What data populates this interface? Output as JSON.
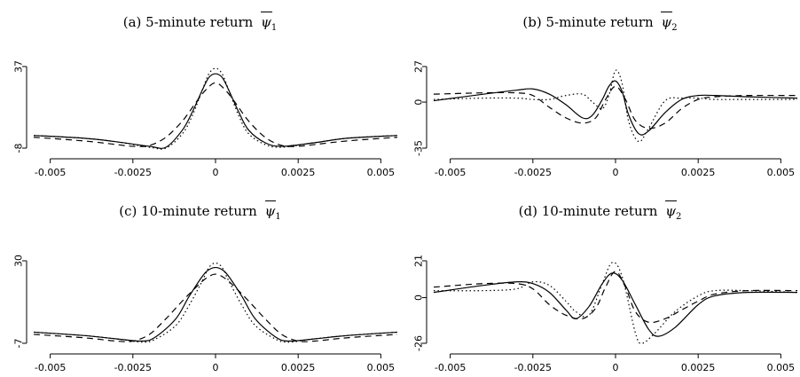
{
  "chart_data": [
    {
      "type": "line",
      "title": "(a) 5-minute return",
      "symbol": "ψ",
      "subscript": "1",
      "xlim": [
        -0.0055,
        0.0055
      ],
      "ylim": [
        -8,
        37
      ],
      "xticks": [
        "-0.005",
        "-0.0025",
        "0",
        "0.0025",
        "0.005"
      ],
      "yticks": [
        "37",
        "-8"
      ],
      "series": [
        {
          "style": "solid",
          "x": [
            -0.0055,
            -0.004,
            -0.003,
            -0.002,
            -0.0015,
            -0.001,
            -0.0007,
            -0.0004,
            -0.0002,
            0,
            0.0002,
            0.0004,
            0.0007,
            0.001,
            0.0015,
            0.002,
            0.003,
            0.004,
            0.0055
          ],
          "y": [
            -1,
            -2.5,
            -4.5,
            -7,
            -7.5,
            2,
            12,
            24,
            31,
            33,
            31,
            24,
            12,
            2,
            -5,
            -7,
            -5,
            -2.5,
            -1
          ]
        },
        {
          "style": "dotted",
          "x": [
            -0.0055,
            -0.004,
            -0.003,
            -0.002,
            -0.0015,
            -0.001,
            -0.0007,
            -0.0004,
            -0.0002,
            0,
            0.0002,
            0.0004,
            0.0007,
            0.001,
            0.0015,
            0.002,
            0.003,
            0.004,
            0.0055
          ],
          "y": [
            -1,
            -2.5,
            -4.5,
            -7.5,
            -8,
            0,
            10,
            24,
            33,
            36,
            33,
            24,
            10,
            0,
            -6,
            -7.5,
            -5,
            -2.5,
            -1
          ]
        },
        {
          "style": "dashed",
          "x": [
            -0.0055,
            -0.004,
            -0.003,
            -0.0025,
            -0.002,
            -0.0015,
            -0.001,
            -0.0006,
            -0.0003,
            0,
            0.0003,
            0.0006,
            0.001,
            0.0015,
            0.002,
            0.0025,
            0.003,
            0.004,
            0.0055
          ],
          "y": [
            -2,
            -4,
            -6,
            -7,
            -6.5,
            -2,
            7,
            17,
            24,
            28,
            24,
            17,
            7,
            -2,
            -6.5,
            -7,
            -6,
            -4,
            -2
          ]
        }
      ]
    },
    {
      "type": "line",
      "title": "(b) 5-minute return",
      "symbol": "ψ",
      "subscript": "2",
      "xlim": [
        -0.0055,
        0.0055
      ],
      "ylim": [
        -35,
        27
      ],
      "xticks": [
        "-0.005",
        "-0.0025",
        "0",
        "0.0025",
        "0.005"
      ],
      "yticks": [
        "27",
        "0",
        "-35"
      ],
      "series": [
        {
          "style": "solid",
          "x": [
            -0.0055,
            -0.004,
            -0.003,
            -0.0025,
            -0.002,
            -0.0015,
            -0.001,
            -0.0007,
            -0.0004,
            -0.0002,
            0,
            0.0002,
            0.0004,
            0.0007,
            0.001,
            0.0015,
            0.002,
            0.0025,
            0.003,
            0.004,
            0.0055
          ],
          "y": [
            1,
            6,
            9,
            10,
            6,
            -2,
            -12,
            -10,
            2,
            12,
            16,
            8,
            -10,
            -24,
            -22,
            -8,
            2,
            5,
            5,
            4,
            3
          ]
        },
        {
          "style": "dotted",
          "x": [
            -0.0055,
            -0.004,
            -0.003,
            -0.0025,
            -0.002,
            -0.0015,
            -0.001,
            -0.0007,
            -0.0004,
            -0.0002,
            0,
            0.0002,
            0.0004,
            0.0007,
            0.001,
            0.0015,
            0.002,
            0.0025,
            0.003,
            0.004,
            0.0055
          ],
          "y": [
            2,
            3,
            3,
            2,
            2,
            5,
            6,
            0,
            -5,
            5,
            24,
            14,
            -15,
            -30,
            -20,
            1,
            3,
            3,
            2,
            2,
            2
          ]
        },
        {
          "style": "dashed",
          "x": [
            -0.0055,
            -0.004,
            -0.003,
            -0.0025,
            -0.002,
            -0.0015,
            -0.001,
            -0.0006,
            -0.0003,
            0,
            0.0003,
            0.0006,
            0.001,
            0.0015,
            0.002,
            0.0025,
            0.003,
            0.004,
            0.0055
          ],
          "y": [
            6,
            7,
            7,
            5,
            -4,
            -12,
            -16,
            -12,
            2,
            12,
            2,
            -14,
            -20,
            -16,
            -5,
            2,
            4,
            5,
            5
          ]
        }
      ]
    },
    {
      "type": "line",
      "title": "(c) 10-minute return",
      "symbol": "ψ",
      "subscript": "1",
      "xlim": [
        -0.0055,
        0.0055
      ],
      "ylim": [
        -7,
        30
      ],
      "xticks": [
        "-0.005",
        "-0.0025",
        "0",
        "0.0025",
        "0.005"
      ],
      "yticks": [
        "30",
        "-7"
      ],
      "series": [
        {
          "style": "solid",
          "x": [
            -0.0055,
            -0.004,
            -0.003,
            -0.0022,
            -0.0018,
            -0.0012,
            -0.0008,
            -0.0004,
            -0.0002,
            0,
            0.0002,
            0.0004,
            0.0008,
            0.0012,
            0.0018,
            0.0022,
            0.003,
            0.004,
            0.0055
          ],
          "y": [
            -2,
            -3.5,
            -5,
            -6,
            -4,
            4,
            14,
            23,
            26,
            27,
            26,
            23,
            14,
            4,
            -4,
            -6,
            -5,
            -3.5,
            -2
          ]
        },
        {
          "style": "dotted",
          "x": [
            -0.0055,
            -0.004,
            -0.003,
            -0.0022,
            -0.0018,
            -0.0012,
            -0.0008,
            -0.0004,
            -0.0002,
            0,
            0.0002,
            0.0004,
            0.0008,
            0.0012,
            0.0018,
            0.0022,
            0.003,
            0.004,
            0.0055
          ],
          "y": [
            -2,
            -3.5,
            -5,
            -6.5,
            -5,
            1,
            10,
            21,
            27,
            29,
            27,
            21,
            10,
            1,
            -5,
            -6.5,
            -5,
            -3.5,
            -2
          ]
        },
        {
          "style": "dashed",
          "x": [
            -0.0055,
            -0.004,
            -0.003,
            -0.0025,
            -0.002,
            -0.0015,
            -0.001,
            -0.0006,
            -0.0003,
            0,
            0.0003,
            0.0006,
            0.001,
            0.0015,
            0.002,
            0.0025,
            0.003,
            0.004,
            0.0055
          ],
          "y": [
            -3,
            -4.5,
            -6,
            -6,
            -3,
            4,
            12,
            18,
            22,
            24,
            22,
            18,
            12,
            4,
            -3,
            -6,
            -6,
            -4.5,
            -3
          ]
        }
      ]
    },
    {
      "type": "line",
      "title": "(d) 10-minute return",
      "symbol": "ψ",
      "subscript": "2",
      "xlim": [
        -0.0055,
        0.0055
      ],
      "ylim": [
        -26,
        21
      ],
      "xticks": [
        "-0.005",
        "-0.0025",
        "0",
        "0.0025",
        "0.005"
      ],
      "yticks": [
        "21",
        "0",
        "-26"
      ],
      "series": [
        {
          "style": "solid",
          "x": [
            -0.0055,
            -0.004,
            -0.003,
            -0.0025,
            -0.002,
            -0.0015,
            -0.0012,
            -0.0008,
            -0.0004,
            -0.0001,
            0.0002,
            0.0006,
            0.001,
            0.0013,
            0.0018,
            0.0025,
            0.003,
            0.004,
            0.0055
          ],
          "y": [
            3,
            7,
            9,
            8,
            3,
            -7,
            -12,
            -5,
            8,
            14,
            10,
            -4,
            -18,
            -22,
            -17,
            -4,
            1,
            3,
            3
          ]
        },
        {
          "style": "dotted",
          "x": [
            -0.0055,
            -0.004,
            -0.003,
            -0.0025,
            -0.002,
            -0.0015,
            -0.0012,
            -0.0008,
            -0.0004,
            -0.0001,
            0.0002,
            0.0006,
            0.0008,
            0.0012,
            0.0018,
            0.0025,
            0.003,
            0.004,
            0.0055
          ],
          "y": [
            4,
            4,
            5,
            9,
            7,
            -2,
            -8,
            -10,
            8,
            20,
            12,
            -20,
            -26,
            -20,
            -8,
            1,
            4,
            4,
            3
          ]
        },
        {
          "style": "dashed",
          "x": [
            -0.0055,
            -0.004,
            -0.003,
            -0.0025,
            -0.002,
            -0.0015,
            -0.001,
            -0.0006,
            -0.0003,
            0,
            0.0003,
            0.0006,
            0.001,
            0.0015,
            0.002,
            0.0025,
            0.003,
            0.004,
            0.0055
          ],
          "y": [
            6,
            8,
            8,
            5,
            -4,
            -10,
            -12,
            -6,
            6,
            15,
            6,
            -8,
            -14,
            -12,
            -7,
            -2,
            2,
            4,
            4
          ]
        }
      ]
    }
  ]
}
